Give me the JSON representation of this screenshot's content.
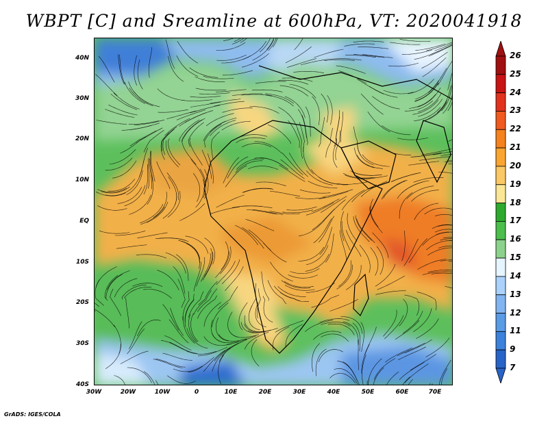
{
  "title": "WBPT [C] and Sreamline at 600hPa, VT: 2020041918",
  "footer": "GrADS: IGES/COLA",
  "map": {
    "lat_labels": [
      "40N",
      "30N",
      "20N",
      "10N",
      "EQ",
      "10S",
      "20S",
      "30S",
      "40S"
    ],
    "lon_labels": [
      "30W",
      "20W",
      "10W",
      "0",
      "10E",
      "20E",
      "30E",
      "40E",
      "50E",
      "60E",
      "70E"
    ],
    "lat_range": [
      -40,
      45
    ],
    "lon_range": [
      -30,
      75
    ],
    "variable": "Wet-bulb potential temperature",
    "level": "600hPa",
    "overlay": "streamlines"
  },
  "colorbar": {
    "levels": [
      "26",
      "25",
      "24",
      "23",
      "22",
      "21",
      "20",
      "19",
      "18",
      "17",
      "16",
      "15",
      "14",
      "13",
      "12",
      "11",
      "9",
      "7"
    ],
    "colors": [
      "#a01010",
      "#c81414",
      "#e1321e",
      "#f05a1e",
      "#f5821e",
      "#faa532",
      "#fac864",
      "#fae696",
      "#2daa2d",
      "#4bbe4b",
      "#8cd28c",
      "#e6f5ff",
      "#aad2fa",
      "#82b4f0",
      "#5a9be6",
      "#3c82dc",
      "#2864c8"
    ],
    "low_arrow_color": "#2864c8",
    "high_arrow_color": "#a01010"
  }
}
